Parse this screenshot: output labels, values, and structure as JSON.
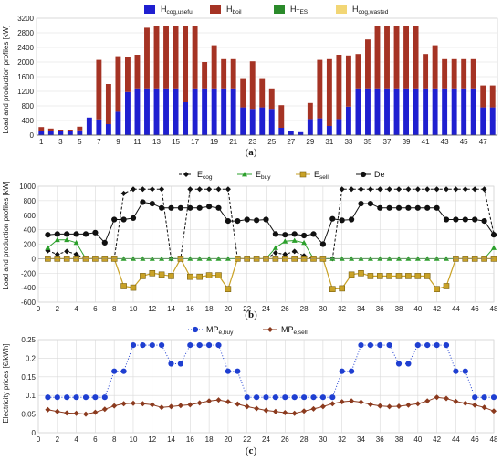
{
  "panels": {
    "a": {
      "caption_open": "(",
      "caption_letter": "a",
      "caption_close": ")"
    },
    "b": {
      "caption_open": "(",
      "caption_letter": "b",
      "caption_close": ")"
    },
    "c": {
      "caption_open": "(",
      "caption_letter": "c",
      "caption_close": ")"
    }
  },
  "colors": {
    "cog_useful": "#1f1fd0",
    "boil": "#a53324",
    "tes": "#2a8a2a",
    "cog_wasted": "#f2d675",
    "cog_line": "#111111",
    "buy_line": "#2ca02c",
    "sell_line": "#c9a227",
    "de_line": "#111111",
    "mp_buy": "#1f3fd1",
    "mp_sell": "#8b3a1e",
    "grid": "#d9d9d9"
  },
  "chart_data": [
    {
      "id": "a",
      "type": "bar",
      "stacked": true,
      "ylabel": "Load and production profiles  [kW]",
      "ylim": [
        0,
        3200
      ],
      "yticks": [
        0,
        400,
        800,
        1200,
        1600,
        2000,
        2400,
        2800,
        3200
      ],
      "categories": [
        1,
        2,
        3,
        4,
        5,
        6,
        7,
        8,
        9,
        10,
        11,
        12,
        13,
        14,
        15,
        16,
        17,
        18,
        19,
        20,
        21,
        22,
        23,
        24,
        25,
        26,
        27,
        28,
        29,
        30,
        31,
        32,
        33,
        34,
        35,
        36,
        37,
        38,
        39,
        40,
        41,
        42,
        43,
        44,
        45,
        46,
        47,
        48
      ],
      "xtick_labels": [
        "1",
        "3",
        "5",
        "7",
        "9",
        "11",
        "13",
        "15",
        "17",
        "19",
        "21",
        "23",
        "25",
        "27",
        "29",
        "31",
        "33",
        "35",
        "37",
        "39",
        "41",
        "43",
        "45",
        "47"
      ],
      "legend": [
        {
          "main": "H",
          "sub": "cog,useful"
        },
        {
          "main": "H",
          "sub": "boil"
        },
        {
          "main": "H",
          "sub": "TES"
        },
        {
          "main": "H",
          "sub": "cog,wasted"
        }
      ],
      "series": [
        {
          "key": "cog_useful",
          "values": [
            120,
            120,
            120,
            120,
            130,
            480,
            430,
            300,
            640,
            1180,
            1280,
            1280,
            1280,
            1280,
            1280,
            900,
            1280,
            1280,
            1280,
            1280,
            1280,
            760,
            720,
            760,
            720,
            200,
            100,
            80,
            440,
            460,
            250,
            440,
            780,
            1280,
            1280,
            1280,
            1280,
            1280,
            1280,
            1280,
            1280,
            1280,
            1280,
            1280,
            1280,
            1280,
            760,
            760
          ]
        },
        {
          "key": "boil",
          "values": [
            100,
            60,
            30,
            30,
            100,
            0,
            1630,
            1100,
            1520,
            970,
            920,
            1660,
            1720,
            1720,
            1720,
            2080,
            1720,
            720,
            1180,
            800,
            800,
            800,
            1300,
            800,
            560,
            620,
            0,
            0,
            440,
            1600,
            1830,
            1760,
            1400,
            940,
            1340,
            1700,
            1720,
            1720,
            1720,
            1720,
            940,
            1180,
            800,
            800,
            800,
            800,
            600,
            600
          ]
        },
        {
          "key": "tes",
          "values": [
            0,
            0,
            0,
            0,
            0,
            0,
            0,
            0,
            0,
            0,
            0,
            0,
            0,
            0,
            0,
            0,
            0,
            0,
            0,
            0,
            0,
            0,
            0,
            0,
            0,
            0,
            0,
            0,
            0,
            0,
            0,
            0,
            0,
            0,
            0,
            0,
            0,
            0,
            0,
            0,
            0,
            0,
            0,
            0,
            0,
            0,
            0,
            0
          ]
        },
        {
          "key": "cog_wasted",
          "values": [
            0,
            0,
            0,
            0,
            0,
            0,
            0,
            0,
            0,
            0,
            0,
            0,
            0,
            0,
            0,
            0,
            0,
            0,
            0,
            0,
            0,
            0,
            0,
            0,
            0,
            0,
            0,
            0,
            0,
            0,
            0,
            0,
            0,
            0,
            0,
            0,
            0,
            0,
            0,
            0,
            0,
            0,
            0,
            0,
            0,
            0,
            0,
            0
          ]
        }
      ]
    },
    {
      "id": "b",
      "type": "line",
      "ylabel": "Load and production profiles  [kW]",
      "ylim": [
        -600,
        1000
      ],
      "yticks": [
        -600,
        -400,
        -200,
        0,
        200,
        400,
        600,
        800,
        1000
      ],
      "xlim": [
        0,
        48
      ],
      "xticks": [
        0,
        2,
        4,
        6,
        8,
        10,
        12,
        14,
        16,
        18,
        20,
        22,
        24,
        26,
        28,
        30,
        32,
        34,
        36,
        38,
        40,
        42,
        44,
        46,
        48
      ],
      "legend": [
        {
          "main": "E",
          "sub": "cog"
        },
        {
          "main": "E",
          "sub": "buy"
        },
        {
          "main": "E",
          "sub": "sell"
        },
        {
          "main": "De",
          "sub": ""
        }
      ],
      "series": [
        {
          "key": "cog",
          "style": "dashed",
          "marker": "diamond",
          "x": [
            1,
            2,
            3,
            4,
            5,
            6,
            7,
            8,
            9,
            10,
            11,
            12,
            13,
            14,
            15,
            16,
            17,
            18,
            19,
            20,
            21,
            22,
            23,
            24,
            25,
            26,
            27,
            28,
            29,
            30,
            31,
            32,
            33,
            34,
            35,
            36,
            37,
            38,
            39,
            40,
            41,
            42,
            43,
            44,
            45,
            46,
            47,
            48
          ],
          "y": [
            110,
            60,
            100,
            60,
            0,
            0,
            0,
            0,
            900,
            960,
            960,
            960,
            960,
            0,
            0,
            960,
            960,
            960,
            960,
            960,
            0,
            0,
            0,
            0,
            80,
            60,
            100,
            40,
            0,
            0,
            0,
            960,
            960,
            960,
            960,
            960,
            960,
            960,
            960,
            960,
            960,
            960,
            960,
            960,
            960,
            960,
            960,
            340
          ]
        },
        {
          "key": "buy",
          "style": "solid",
          "marker": "triangle",
          "x": [
            1,
            2,
            3,
            4,
            5,
            6,
            7,
            8,
            9,
            10,
            11,
            12,
            13,
            14,
            15,
            16,
            17,
            18,
            19,
            20,
            21,
            22,
            23,
            24,
            25,
            26,
            27,
            28,
            29,
            30,
            31,
            32,
            33,
            34,
            35,
            36,
            37,
            38,
            39,
            40,
            41,
            42,
            43,
            44,
            45,
            46,
            47,
            48
          ],
          "y": [
            150,
            260,
            260,
            220,
            0,
            0,
            0,
            0,
            0,
            0,
            0,
            0,
            0,
            0,
            0,
            0,
            0,
            0,
            0,
            0,
            0,
            0,
            0,
            0,
            150,
            240,
            250,
            220,
            0,
            0,
            0,
            0,
            0,
            0,
            0,
            0,
            0,
            0,
            0,
            0,
            0,
            0,
            0,
            0,
            0,
            0,
            0,
            150
          ]
        },
        {
          "key": "sell",
          "style": "solid",
          "marker": "square",
          "x": [
            1,
            2,
            3,
            4,
            5,
            6,
            7,
            8,
            9,
            10,
            11,
            12,
            13,
            14,
            15,
            16,
            17,
            18,
            19,
            20,
            21,
            22,
            23,
            24,
            25,
            26,
            27,
            28,
            29,
            30,
            31,
            32,
            33,
            34,
            35,
            36,
            37,
            38,
            39,
            40,
            41,
            42,
            43,
            44,
            45,
            46,
            47,
            48
          ],
          "y": [
            0,
            0,
            0,
            0,
            0,
            0,
            0,
            0,
            -380,
            -400,
            -240,
            -200,
            -220,
            -240,
            0,
            -250,
            -250,
            -230,
            -230,
            -420,
            0,
            0,
            0,
            0,
            0,
            0,
            0,
            0,
            0,
            0,
            -420,
            -410,
            -220,
            -200,
            -240,
            -240,
            -240,
            -240,
            -240,
            -240,
            -240,
            -420,
            -380,
            0,
            0,
            0,
            0,
            0
          ]
        },
        {
          "key": "de",
          "style": "solid",
          "marker": "circle",
          "x": [
            1,
            2,
            3,
            4,
            5,
            6,
            7,
            8,
            9,
            10,
            11,
            12,
            13,
            14,
            15,
            16,
            17,
            18,
            19,
            20,
            21,
            22,
            23,
            24,
            25,
            26,
            27,
            28,
            29,
            30,
            31,
            32,
            33,
            34,
            35,
            36,
            37,
            38,
            39,
            40,
            41,
            42,
            43,
            44,
            45,
            46,
            47,
            48
          ],
          "y": [
            330,
            340,
            340,
            340,
            340,
            360,
            220,
            540,
            540,
            560,
            780,
            760,
            700,
            700,
            700,
            700,
            700,
            720,
            700,
            520,
            520,
            540,
            530,
            540,
            340,
            330,
            340,
            320,
            340,
            200,
            550,
            530,
            540,
            760,
            760,
            700,
            700,
            700,
            700,
            700,
            700,
            700,
            540,
            540,
            540,
            540,
            520,
            330
          ]
        }
      ]
    },
    {
      "id": "c",
      "type": "line",
      "ylabel": "Electricity prices  [€/kWh]",
      "ylim": [
        0,
        0.25
      ],
      "yticks": [
        0,
        0.05,
        0.1,
        0.15,
        0.2,
        0.25
      ],
      "ytick_labels": [
        "0",
        "0.05",
        "0.1",
        "0.15",
        "0.2",
        "0.25"
      ],
      "xlim": [
        0,
        48
      ],
      "xticks": [
        0,
        2,
        4,
        6,
        8,
        10,
        12,
        14,
        16,
        18,
        20,
        22,
        24,
        26,
        28,
        30,
        32,
        34,
        36,
        38,
        40,
        42,
        44,
        46,
        48
      ],
      "legend": [
        {
          "main": "MP",
          "sub": "e,buy"
        },
        {
          "main": "MP",
          "sub": "e,sell"
        }
      ],
      "series": [
        {
          "key": "buy",
          "style": "dotted",
          "marker": "circle",
          "x": [
            1,
            2,
            3,
            4,
            5,
            6,
            7,
            8,
            9,
            10,
            11,
            12,
            13,
            14,
            15,
            16,
            17,
            18,
            19,
            20,
            21,
            22,
            23,
            24,
            25,
            26,
            27,
            28,
            29,
            30,
            31,
            32,
            33,
            34,
            35,
            36,
            37,
            38,
            39,
            40,
            41,
            42,
            43,
            44,
            45,
            46,
            47,
            48
          ],
          "y": [
            0.095,
            0.095,
            0.095,
            0.095,
            0.095,
            0.095,
            0.095,
            0.165,
            0.165,
            0.235,
            0.235,
            0.235,
            0.235,
            0.185,
            0.185,
            0.235,
            0.235,
            0.235,
            0.235,
            0.165,
            0.165,
            0.095,
            0.095,
            0.095,
            0.095,
            0.095,
            0.095,
            0.095,
            0.095,
            0.095,
            0.095,
            0.165,
            0.165,
            0.235,
            0.235,
            0.235,
            0.235,
            0.185,
            0.185,
            0.235,
            0.235,
            0.235,
            0.235,
            0.165,
            0.165,
            0.095,
            0.095,
            0.095
          ]
        },
        {
          "key": "sell",
          "style": "solid",
          "marker": "diamond",
          "x": [
            1,
            2,
            3,
            4,
            5,
            6,
            7,
            8,
            9,
            10,
            11,
            12,
            13,
            14,
            15,
            16,
            17,
            18,
            19,
            20,
            21,
            22,
            23,
            24,
            25,
            26,
            27,
            28,
            29,
            30,
            31,
            32,
            33,
            34,
            35,
            36,
            37,
            38,
            39,
            40,
            41,
            42,
            43,
            44,
            45,
            46,
            47,
            48
          ],
          "y": [
            0.062,
            0.057,
            0.053,
            0.052,
            0.05,
            0.055,
            0.063,
            0.072,
            0.078,
            0.079,
            0.078,
            0.075,
            0.068,
            0.07,
            0.073,
            0.075,
            0.08,
            0.085,
            0.088,
            0.083,
            0.077,
            0.07,
            0.065,
            0.06,
            0.057,
            0.054,
            0.052,
            0.058,
            0.064,
            0.07,
            0.078,
            0.083,
            0.085,
            0.082,
            0.076,
            0.072,
            0.07,
            0.071,
            0.074,
            0.078,
            0.085,
            0.095,
            0.092,
            0.084,
            0.079,
            0.074,
            0.068,
            0.058
          ]
        }
      ]
    }
  ]
}
